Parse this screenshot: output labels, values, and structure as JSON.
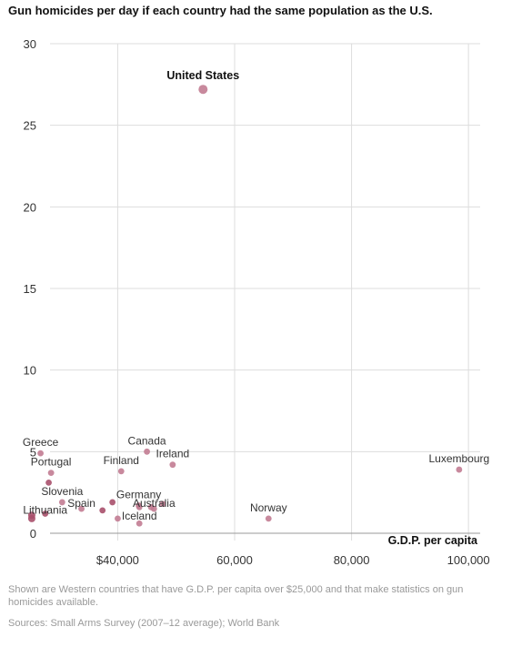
{
  "title": "Gun homicides per day if each country had the same population as the U.S.",
  "note": "Shown are Western countries that have G.D.P. per capita over $25,000 and that make statistics on gun homicides available.",
  "sources": "Sources:  Small Arms Survey (2007–12 average); World Bank",
  "colors": {
    "point": "#c27c92",
    "point_dark": "#a8506c",
    "grid": "#dddddd",
    "axis": "#999999"
  },
  "chart_data": {
    "type": "scatter",
    "title": "Gun homicides per day if each country had the same population as the U.S.",
    "xlabel": "G.D.P. per capita",
    "ylabel": "",
    "xlim": [
      25000,
      102000
    ],
    "ylim": [
      0,
      30
    ],
    "xticks": [
      40000,
      60000,
      80000,
      100000
    ],
    "xtick_labels": [
      "$40,000",
      "60,000",
      "80,000",
      "100,000"
    ],
    "yticks": [
      0,
      5,
      10,
      15,
      20,
      25,
      30
    ],
    "ytick_labels": [
      "0",
      "5",
      "10",
      "15",
      "20",
      "25",
      "30"
    ],
    "grid": true,
    "points": [
      {
        "label": "United States",
        "x": 54600,
        "y": 27.2,
        "highlight": true
      },
      {
        "label": "Greece",
        "x": 26800,
        "y": 4.9
      },
      {
        "label": "Canada",
        "x": 45000,
        "y": 5.0
      },
      {
        "label": "Ireland",
        "x": 49400,
        "y": 4.2
      },
      {
        "label": "Portugal",
        "x": 28600,
        "y": 3.7
      },
      {
        "label": "Finland",
        "x": 40600,
        "y": 3.8
      },
      {
        "label": "Luxembourg",
        "x": 98400,
        "y": 3.9
      },
      {
        "label": "",
        "x": 28200,
        "y": 3.1
      },
      {
        "label": "Slovenia",
        "x": 30500,
        "y": 1.9
      },
      {
        "label": "Spain",
        "x": 33800,
        "y": 1.5
      },
      {
        "label": "Lithuania",
        "x": 27600,
        "y": 1.2
      },
      {
        "label": "",
        "x": 25300,
        "y": 1.1
      },
      {
        "label": "",
        "x": 25300,
        "y": 0.9
      },
      {
        "label": "",
        "x": 37400,
        "y": 1.4
      },
      {
        "label": "",
        "x": 39100,
        "y": 1.9
      },
      {
        "label": "Germany",
        "x": 43600,
        "y": 1.7
      },
      {
        "label": "",
        "x": 45700,
        "y": 1.6
      },
      {
        "label": "",
        "x": 47700,
        "y": 1.8
      },
      {
        "label": "Australia",
        "x": 46200,
        "y": 1.5
      },
      {
        "label": "",
        "x": 43700,
        "y": 1.6
      },
      {
        "label": "",
        "x": 40000,
        "y": 0.9
      },
      {
        "label": "Iceland",
        "x": 43700,
        "y": 0.6
      },
      {
        "label": "Norway",
        "x": 65800,
        "y": 0.9
      }
    ]
  }
}
